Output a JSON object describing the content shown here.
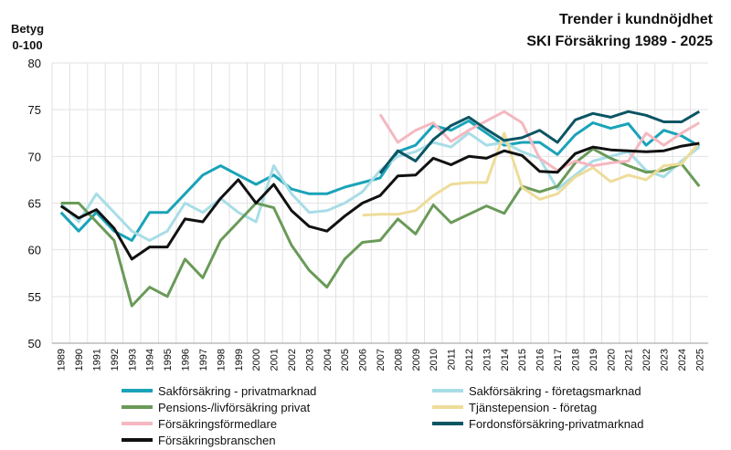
{
  "chart_data": {
    "type": "line",
    "title": "Trender i kundnöjdhet",
    "subtitle": "SKI Försäkring 1989 - 2025",
    "y_label": [
      "Betyg",
      "0-100"
    ],
    "categories": [
      "1989",
      "1990",
      "1991",
      "1992",
      "1993",
      "1994",
      "1995",
      "1996",
      "1997",
      "1998",
      "1999",
      "2000",
      "2001",
      "2002",
      "2003",
      "2004",
      "2005",
      "2006",
      "2007",
      "2008",
      "2009",
      "2010",
      "2011",
      "2012",
      "2013",
      "2014",
      "2015",
      "2016",
      "2017",
      "2018",
      "2019",
      "2020",
      "2021",
      "2022",
      "2023",
      "2024",
      "2025"
    ],
    "ylim": [
      50,
      80
    ],
    "yticks": [
      50,
      55,
      60,
      65,
      70,
      75,
      80
    ],
    "grid": true,
    "series": [
      {
        "name": "Sakförsäkring - privatmarknad",
        "color": "#1aa3b8",
        "values": [
          64,
          62,
          64,
          62,
          61,
          64,
          64,
          66,
          68,
          69,
          68,
          67,
          68,
          66.5,
          66,
          66,
          66.7,
          67.2,
          67.7,
          70.5,
          71.2,
          73.3,
          72.8,
          73.8,
          72.5,
          71.2,
          71.5,
          71.5,
          70.2,
          72.3,
          73.6,
          73,
          73.5,
          71.2,
          72.8,
          72.2,
          71.1
        ]
      },
      {
        "name": "Sakförsäkring - företagsmarknad",
        "color": "#a8dde6",
        "values": [
          65,
          63,
          66,
          64,
          62,
          61,
          62,
          65,
          64,
          65.5,
          64,
          63,
          69,
          66,
          64,
          64.2,
          65,
          66.2,
          68.5,
          70,
          70.5,
          71.5,
          71,
          72.5,
          71.2,
          71.5,
          70.5,
          69.8,
          66.5,
          68,
          69.5,
          70,
          70.5,
          68.5,
          67.8,
          69.5,
          71
        ]
      },
      {
        "name": "Pensions-/livförsäkring privat",
        "color": "#6a9a58",
        "values": [
          65,
          65,
          63,
          61,
          54,
          56,
          55,
          59,
          57,
          61,
          63,
          65,
          64.5,
          60.5,
          57.8,
          56,
          59,
          60.8,
          61,
          63.3,
          61.7,
          64.8,
          62.9,
          63.8,
          64.7,
          63.9,
          66.8,
          66.2,
          66.8,
          69.3,
          70.8,
          69.8,
          69,
          68.3,
          68.5,
          69.2,
          66.8
        ]
      },
      {
        "name": "Tjänstepension - företag",
        "color": "#eedc9a",
        "values": [
          null,
          null,
          null,
          null,
          null,
          null,
          null,
          null,
          null,
          null,
          null,
          null,
          null,
          null,
          null,
          null,
          null,
          63.7,
          63.8,
          63.8,
          64.2,
          65.8,
          67,
          67.2,
          67.2,
          72.5,
          66.7,
          65.4,
          66,
          67.8,
          68.8,
          67.3,
          68,
          67.5,
          69,
          69.2,
          71.5
        ]
      },
      {
        "name": "Försäkringsförmedlare",
        "color": "#f4b8c0",
        "values": [
          null,
          null,
          null,
          null,
          null,
          null,
          null,
          null,
          null,
          null,
          null,
          null,
          null,
          null,
          null,
          null,
          null,
          null,
          74.5,
          71.5,
          72.8,
          73.6,
          71.6,
          72.8,
          73.8,
          74.8,
          73.6,
          69.8,
          68.5,
          69.5,
          69,
          69.3,
          69.5,
          72.5,
          71.2,
          72.5,
          73.6
        ]
      },
      {
        "name": "Fordonsförsäkring-privatmarknad",
        "color": "#0b5563",
        "values": [
          null,
          null,
          null,
          null,
          null,
          null,
          null,
          null,
          null,
          null,
          null,
          null,
          null,
          null,
          null,
          null,
          null,
          null,
          68.2,
          70.6,
          69.5,
          71.8,
          73.3,
          74.2,
          72.9,
          71.7,
          72,
          72.8,
          71.5,
          73.9,
          74.6,
          74.2,
          74.8,
          74.4,
          73.7,
          73.7,
          74.8
        ]
      },
      {
        "name": "Försäkringsbranschen",
        "color": "#111111",
        "values": [
          64.7,
          63.4,
          64.3,
          62.3,
          59,
          60.3,
          60.3,
          63.3,
          63,
          65.5,
          67.5,
          65,
          67,
          64.2,
          62.5,
          62,
          63.6,
          65,
          65.8,
          67.9,
          68,
          69.8,
          69.1,
          70,
          69.8,
          70.6,
          70.1,
          68.4,
          68.3,
          70.3,
          71,
          70.7,
          70.6,
          70.5,
          70.6,
          71.1,
          71.4
        ]
      }
    ]
  }
}
